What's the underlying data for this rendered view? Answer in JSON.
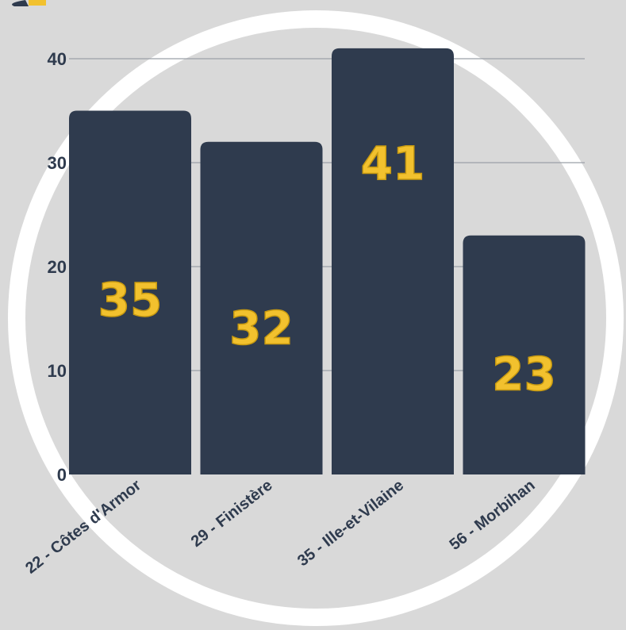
{
  "chart_data": {
    "type": "bar",
    "categories": [
      "22 - Côtes d'Armor",
      "29 - Finistère",
      "35 - Ille-et-Vilaine",
      "56 - Morbihan"
    ],
    "values": [
      35,
      32,
      41,
      23
    ],
    "data_labels": [
      "35",
      "32",
      "41",
      "23"
    ],
    "title": "",
    "xlabel": "",
    "ylabel": "",
    "ylim": [
      0,
      40
    ],
    "yticks": [
      0,
      10,
      20,
      30,
      40
    ],
    "grid": true,
    "legend": "none"
  },
  "colors": {
    "background": "#d9d9d9",
    "bar": "#2f3b4e",
    "ring": "#ffffff",
    "grid": "#9aa0a8",
    "label": "#f2c12e",
    "text": "#2f3b4e"
  },
  "logo": {
    "name": "logo-icon"
  }
}
